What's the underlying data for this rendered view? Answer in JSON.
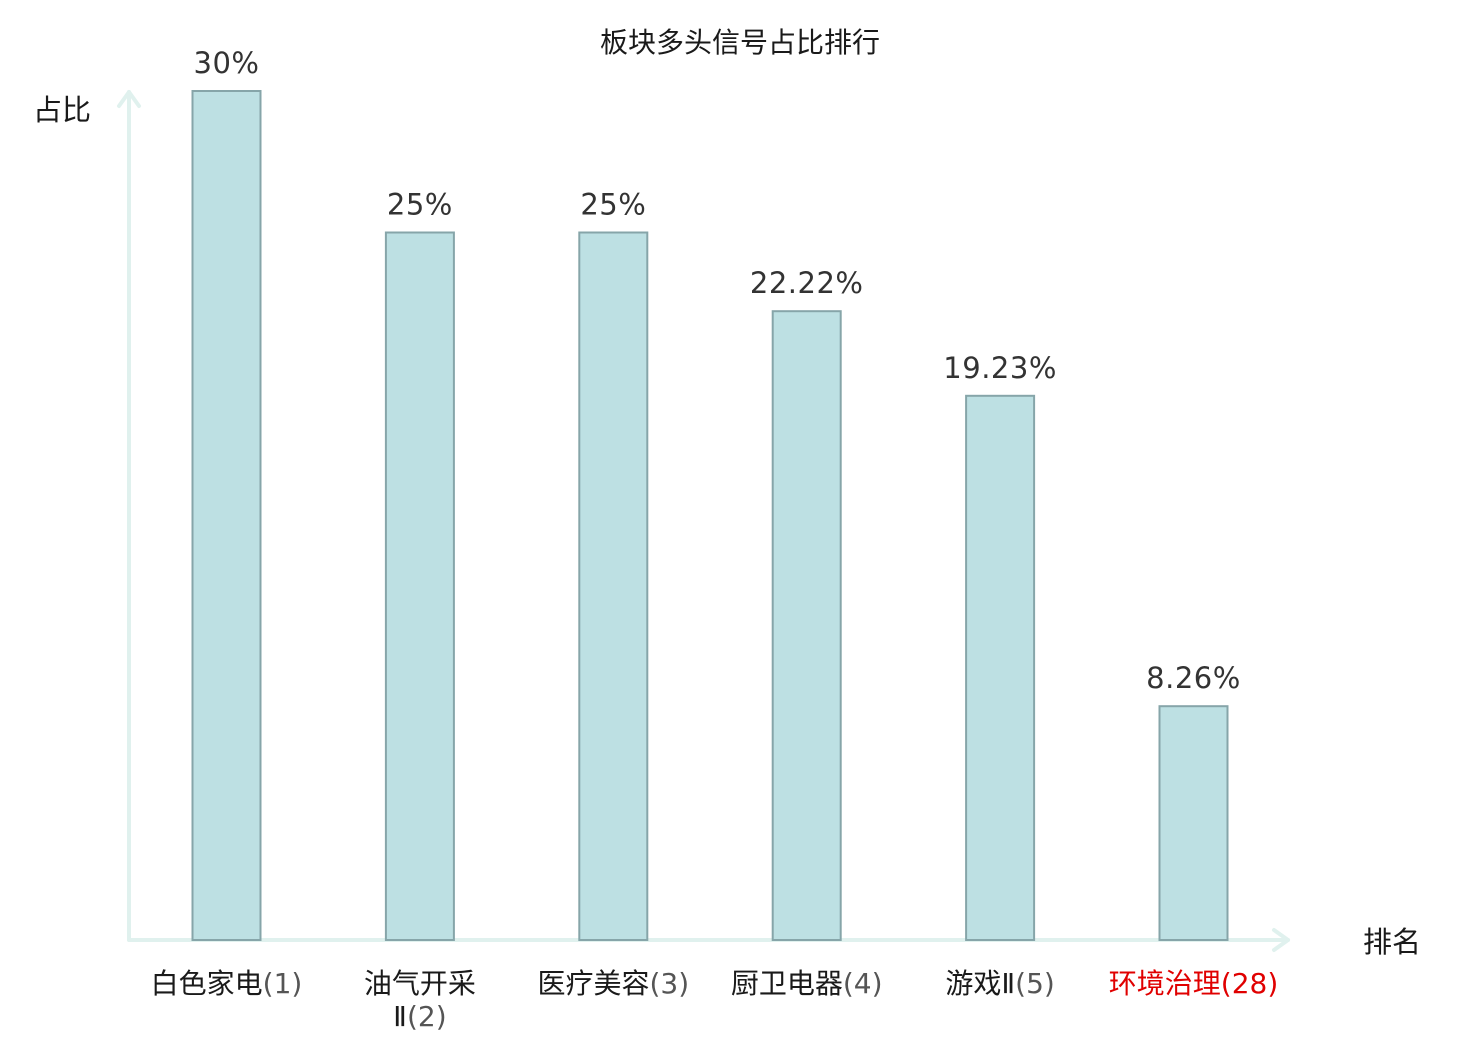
{
  "chart_data": {
    "type": "bar",
    "title": "板块多头信号占比排行",
    "xlabel": "排名",
    "ylabel": "占比",
    "ylim": [
      0,
      30
    ],
    "categories": [
      {
        "name": "白色家电",
        "rank": "(1)",
        "lines": [
          "白色家电(1)"
        ],
        "highlight": false
      },
      {
        "name": "油气开采Ⅱ",
        "rank": "(2)",
        "lines": [
          "油气开采",
          "Ⅱ(2)"
        ],
        "highlight": false
      },
      {
        "name": "医疗美容",
        "rank": "(3)",
        "lines": [
          "医疗美容(3)"
        ],
        "highlight": false
      },
      {
        "name": "厨卫电器",
        "rank": "(4)",
        "lines": [
          "厨卫电器(4)"
        ],
        "highlight": false
      },
      {
        "name": "游戏Ⅱ",
        "rank": "(5)",
        "lines": [
          "游戏Ⅱ(5)"
        ],
        "highlight": false
      },
      {
        "name": "环境治理",
        "rank": "(28)",
        "lines": [
          "环境治理(28)"
        ],
        "highlight": true
      }
    ],
    "values": [
      30,
      25,
      25,
      22.22,
      19.23,
      8.26
    ],
    "value_labels": [
      "30%",
      "25%",
      "25%",
      "22.22%",
      "19.23%",
      "8.26%"
    ],
    "colors": {
      "bar_fill": "#bde0e3",
      "bar_stroke": "#86a5a9",
      "axis": "#e0f1ee",
      "highlight_text": "#e00000",
      "rank_text": "#555555"
    },
    "grid": false,
    "legend": "none"
  }
}
